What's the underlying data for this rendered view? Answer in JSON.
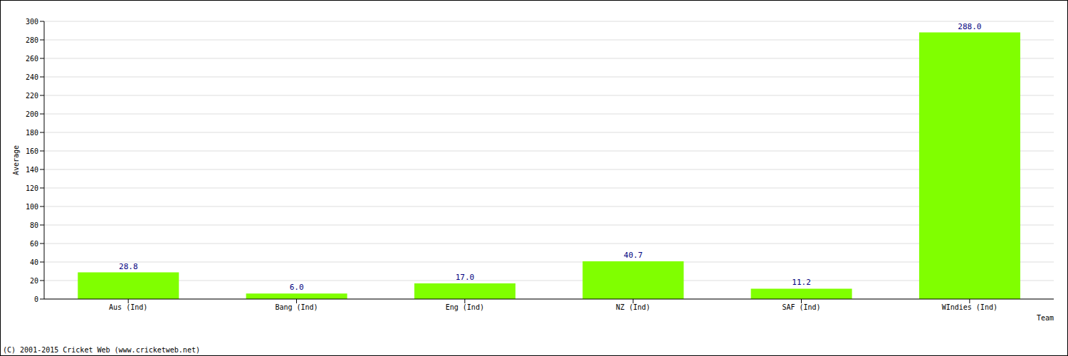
{
  "chart_data": {
    "type": "bar",
    "categories": [
      "Aus (Ind)",
      "Bang (Ind)",
      "Eng (Ind)",
      "NZ (Ind)",
      "SAF (Ind)",
      "WIndies (Ind)"
    ],
    "values": [
      28.8,
      6,
      17,
      40.7,
      11.2,
      288
    ],
    "value_labels": [
      "28.8",
      "6.0",
      "17.0",
      "40.7",
      "11.2",
      "288.0"
    ],
    "color": "#80ff00",
    "x_label": "Team",
    "y_label": "Average",
    "ylim": [
      0,
      300
    ],
    "yticks": [
      0,
      20,
      40,
      60,
      80,
      100,
      120,
      140,
      160,
      180,
      200,
      220,
      240,
      260,
      280,
      300
    ],
    "grid": true,
    "data_labels": true,
    "annotations": [
      "(C) 2001-2015 Cricket Web (www.cricketweb.net)"
    ]
  }
}
